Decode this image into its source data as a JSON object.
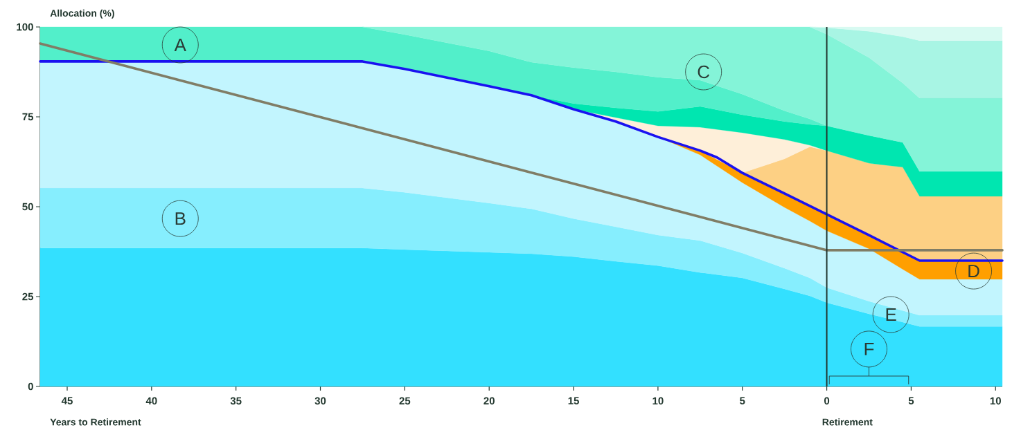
{
  "chart_data": {
    "type": "area",
    "stacked": true,
    "xlabel": "Years to Retirement",
    "ylabel": "Allocation (%)",
    "x": [
      -46.6,
      -27.5,
      -25,
      -20,
      -17.5,
      -15,
      -12.5,
      -10,
      -7.5,
      -5,
      -2.5,
      -1,
      0,
      2.5,
      4.5,
      5.5,
      10.4
    ],
    "series": [
      {
        "color": "#33e0ff",
        "values": [
          38.5,
          38.5,
          38.1,
          37.3,
          36.9,
          36.1,
          34.8,
          33.6,
          31.7,
          30.2,
          27.1,
          25.2,
          23.3,
          20.2,
          17.9,
          16.7,
          16.7
        ]
      },
      {
        "color": "#86eefe",
        "values": [
          16.7,
          16.7,
          15.9,
          13.7,
          12.5,
          10.6,
          9.6,
          8.5,
          8.9,
          6.9,
          5.8,
          5.0,
          4.2,
          3.5,
          3.2,
          3.1,
          3.1
        ]
      },
      {
        "color": "#c2f5fe",
        "values": [
          35.2,
          35.2,
          34.3,
          32.5,
          31.6,
          30.4,
          29.3,
          27.3,
          23.8,
          19.6,
          16.9,
          15.8,
          15.8,
          14.6,
          11.5,
          10.0,
          10.0
        ]
      },
      {
        "color": "#ff9f00",
        "values": [
          null,
          null,
          null,
          null,
          null,
          null,
          null,
          0,
          1.2,
          2.7,
          3.9,
          4.2,
          4.6,
          3.8,
          4.8,
          5.2,
          5.2
        ]
      },
      {
        "color": "#fdd084",
        "values": [
          null,
          null,
          null,
          null,
          null,
          null,
          null,
          null,
          null,
          0,
          9.6,
          16.5,
          17.7,
          20.0,
          23.6,
          17.9,
          17.9
        ]
      },
      {
        "color": "#feefd9",
        "values": [
          null,
          null,
          null,
          null,
          null,
          0,
          1.1,
          3.1,
          6.5,
          11.2,
          5.4,
          0.4,
          0,
          null,
          null,
          null,
          null
        ]
      },
      {
        "color": "#00e6b0",
        "values": [
          null,
          null,
          null,
          null,
          0,
          1.6,
          2.7,
          4.0,
          5.8,
          5.0,
          5.0,
          5.8,
          6.9,
          7.7,
          6.9,
          6.9,
          6.9
        ]
      },
      {
        "color": "#52efca",
        "values": [
          9.6,
          9.6,
          9.6,
          9.8,
          9.2,
          10.0,
          10.0,
          9.5,
          7.3,
          5.7,
          3.0,
          1.5,
          0,
          null,
          null,
          null,
          null
        ]
      },
      {
        "color": "#84f4d8",
        "values": [
          null,
          0,
          2.1,
          6.7,
          9.8,
          11.3,
          12.5,
          14.0,
          14.8,
          18.7,
          23.3,
          25.6,
          25.5,
          21.7,
          16.5,
          20.4,
          20.4
        ]
      },
      {
        "color": "#a8f5e4",
        "values": [
          null,
          null,
          null,
          null,
          null,
          null,
          null,
          null,
          null,
          null,
          null,
          0,
          1.8,
          7.3,
          12.9,
          16.0,
          16.0
        ]
      },
      {
        "color": "#d8faf2",
        "values": [
          null,
          null,
          null,
          null,
          null,
          null,
          null,
          null,
          null,
          null,
          null,
          0,
          0.2,
          1.2,
          2.7,
          3.8,
          3.8
        ]
      },
      {
        "type": "line",
        "color": "#1a12f0",
        "x": [
          -46.6,
          -27.5,
          -25,
          -20,
          -17.5,
          -15,
          -12.5,
          -10,
          -7.5,
          -6.5,
          -5,
          -2.5,
          0,
          2.5,
          5.5,
          10.4
        ],
        "values": [
          90.4,
          90.4,
          88.3,
          83.5,
          81.0,
          77.1,
          73.7,
          69.4,
          65.6,
          63.7,
          59.4,
          53.7,
          47.9,
          42.1,
          35.0,
          35.0
        ]
      },
      {
        "type": "line",
        "color": "#807d66",
        "x": [
          -46.6,
          0,
          10.4
        ],
        "values": [
          95.4,
          37.9,
          37.9
        ]
      }
    ],
    "xlim": [
      -46.6,
      10.4
    ],
    "ylim": [
      0,
      100
    ],
    "xticks": [
      {
        "value": -45,
        "label": "45"
      },
      {
        "value": -40,
        "label": "40"
      },
      {
        "value": -35,
        "label": "35"
      },
      {
        "value": -30,
        "label": "30"
      },
      {
        "value": -25,
        "label": "25"
      },
      {
        "value": -20,
        "label": "20"
      },
      {
        "value": -15,
        "label": "15"
      },
      {
        "value": -10,
        "label": "10"
      },
      {
        "value": -5,
        "label": "5"
      },
      {
        "value": 0,
        "label": "0"
      },
      {
        "value": 5,
        "label": "5"
      },
      {
        "value": 10,
        "label": "10"
      }
    ],
    "yticks": [
      0,
      25,
      50,
      75,
      100
    ],
    "ref_lines": [
      {
        "axis": "x",
        "value": 0,
        "label": "Retirement",
        "color": "#22352e"
      }
    ],
    "annotations": [
      "A",
      "B",
      "C",
      "D",
      "E",
      "F"
    ]
  }
}
